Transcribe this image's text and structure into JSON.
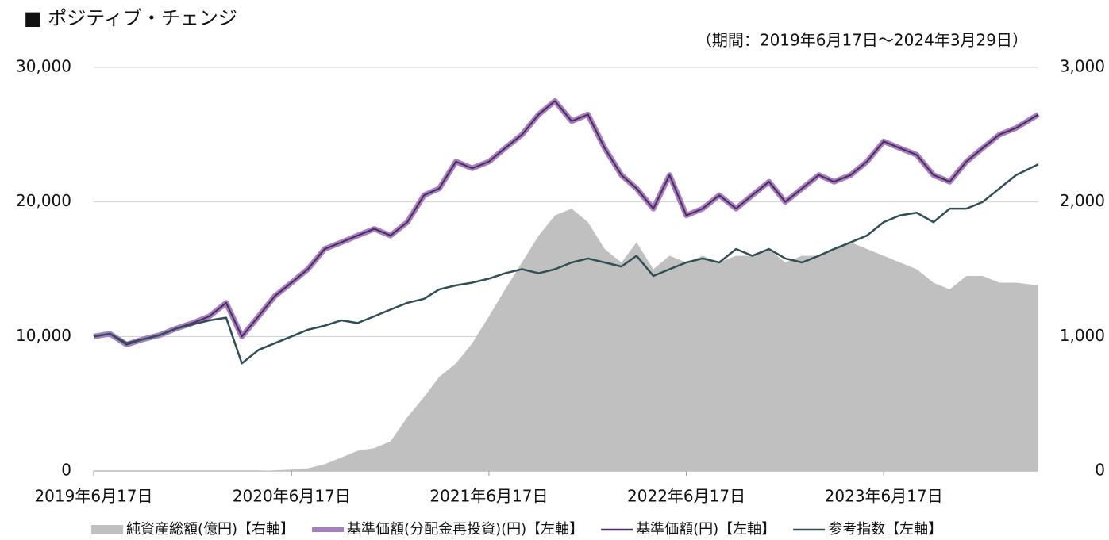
{
  "chart_data": {
    "type": "line",
    "title": "■ ポジティブ・チェンジ",
    "subtitle": "（期間：2019年6月17日～2024年3月29日）",
    "x": [
      "2019-06-17",
      "2019-07-17",
      "2019-08-17",
      "2019-09-17",
      "2019-10-17",
      "2019-11-17",
      "2019-12-17",
      "2020-01-17",
      "2020-02-17",
      "2020-03-17",
      "2020-04-17",
      "2020-05-17",
      "2020-06-17",
      "2020-07-17",
      "2020-08-17",
      "2020-09-17",
      "2020-10-17",
      "2020-11-17",
      "2020-12-17",
      "2021-01-17",
      "2021-02-17",
      "2021-03-17",
      "2021-04-17",
      "2021-05-17",
      "2021-06-17",
      "2021-07-17",
      "2021-08-17",
      "2021-09-17",
      "2021-10-17",
      "2021-11-17",
      "2021-12-17",
      "2022-01-17",
      "2022-02-17",
      "2022-03-17",
      "2022-04-17",
      "2022-05-17",
      "2022-06-17",
      "2022-07-17",
      "2022-08-17",
      "2022-09-17",
      "2022-10-17",
      "2022-11-17",
      "2022-12-17",
      "2023-01-17",
      "2023-02-17",
      "2023-03-17",
      "2023-04-17",
      "2023-05-17",
      "2023-06-17",
      "2023-07-17",
      "2023-08-17",
      "2023-09-17",
      "2023-10-17",
      "2023-11-17",
      "2023-12-17",
      "2024-01-17",
      "2024-02-17",
      "2024-03-29"
    ],
    "xlim": [
      "2019-06-17",
      "2024-03-29"
    ],
    "xticks": [
      {
        "value": "2019-06-17",
        "label": "2019年6月17日"
      },
      {
        "value": "2020-06-17",
        "label": "2020年6月17日"
      },
      {
        "value": "2021-06-17",
        "label": "2021年6月17日"
      },
      {
        "value": "2022-06-17",
        "label": "2022年6月17日"
      },
      {
        "value": "2023-06-17",
        "label": "2023年6月17日"
      }
    ],
    "ylim": [
      0,
      30000
    ],
    "yticks": [
      0,
      {
        "value": 10000,
        "label": "10,000"
      },
      {
        "value": 20000,
        "label": "20,000"
      },
      {
        "value": 30000,
        "label": "30,000"
      }
    ],
    "y2lim": [
      0,
      3000
    ],
    "y2ticks": [
      0,
      {
        "value": 1000,
        "label": "1,000"
      },
      {
        "value": 2000,
        "label": "2,000"
      },
      {
        "value": 3000,
        "label": "3,000"
      }
    ],
    "grid": true,
    "legend": "bottom",
    "series": [
      {
        "name": "純資産総額(億円)【右軸】",
        "type": "area",
        "axis": "y2",
        "color": "#c0c0c0",
        "values": [
          0,
          0,
          0,
          0,
          0,
          0,
          0,
          0,
          0,
          0,
          0,
          5,
          10,
          20,
          50,
          100,
          150,
          170,
          220,
          400,
          550,
          700,
          800,
          950,
          1150,
          1350,
          1550,
          1750,
          1900,
          1950,
          1850,
          1650,
          1550,
          1700,
          1500,
          1600,
          1550,
          1600,
          1550,
          1600,
          1600,
          1650,
          1550,
          1600,
          1600,
          1650,
          1700,
          1650,
          1600,
          1550,
          1500,
          1400,
          1350,
          1450,
          1450,
          1400,
          1400,
          1380
        ]
      },
      {
        "name": "基準価額(分配金再投資)(円)【左軸】",
        "type": "line",
        "color": "#a77fc0",
        "values": [
          10000,
          10200,
          9400,
          9800,
          10100,
          10600,
          11000,
          11500,
          12500,
          10000,
          11500,
          13000,
          14000,
          15000,
          16500,
          17000,
          17500,
          18000,
          17500,
          18500,
          20500,
          21000,
          23000,
          22500,
          23000,
          24000,
          25000,
          26500,
          27500,
          26000,
          26500,
          24000,
          22000,
          21000,
          19500,
          22000,
          19000,
          19500,
          20500,
          19500,
          20500,
          21500,
          20000,
          21000,
          22000,
          21500,
          22000,
          23000,
          24500,
          24000,
          23500,
          22000,
          21500,
          23000,
          24000,
          25000,
          25500,
          26500
        ]
      },
      {
        "name": "基準価額(円)【左軸】",
        "type": "line",
        "color": "#4b2a5e",
        "values": [
          10000,
          10200,
          9400,
          9800,
          10100,
          10600,
          11000,
          11500,
          12500,
          10000,
          11500,
          13000,
          14000,
          15000,
          16500,
          17000,
          17500,
          18000,
          17500,
          18500,
          20500,
          21000,
          23000,
          22500,
          23000,
          24000,
          25000,
          26500,
          27500,
          26000,
          26500,
          24000,
          22000,
          21000,
          19500,
          22000,
          19000,
          19500,
          20500,
          19500,
          20500,
          21500,
          20000,
          21000,
          22000,
          21500,
          22000,
          23000,
          24500,
          24000,
          23500,
          22000,
          21500,
          23000,
          24000,
          25000,
          25500,
          26500
        ]
      },
      {
        "name": "参考指数【左軸】",
        "type": "line",
        "color": "#2f4f58",
        "values": [
          10000,
          10200,
          9500,
          9800,
          10100,
          10600,
          10900,
          11200,
          11400,
          8000,
          9000,
          9500,
          10000,
          10500,
          10800,
          11200,
          11000,
          11500,
          12000,
          12500,
          12800,
          13500,
          13800,
          14000,
          14300,
          14700,
          15000,
          14700,
          15000,
          15500,
          15800,
          15500,
          15200,
          16000,
          14500,
          15000,
          15500,
          15800,
          15500,
          16500,
          16000,
          16500,
          15800,
          15500,
          16000,
          16500,
          17000,
          17500,
          18500,
          19000,
          19200,
          18500,
          19500,
          19500,
          20000,
          21000,
          22000,
          22800
        ]
      }
    ]
  }
}
